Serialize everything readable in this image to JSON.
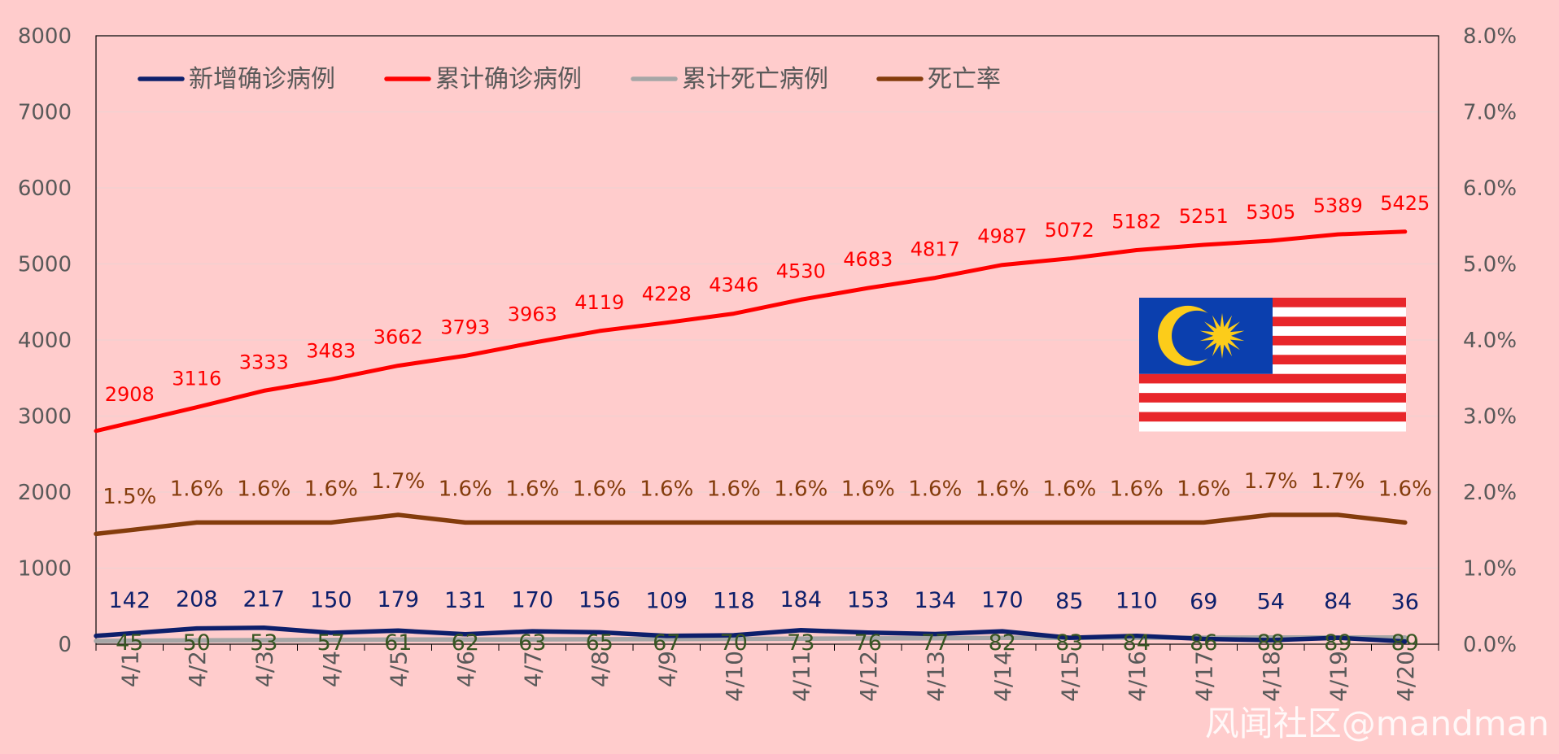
{
  "colors": {
    "background": "#ffcccc",
    "new_cases": "#0d1f6b",
    "total_cases": "#ff0000",
    "total_deaths": "#a6a6a6",
    "death_rate": "#843c0c",
    "death_labels": "#375623",
    "axis_text": "#595959",
    "gridline": "#f2d0d0"
  },
  "chart_data": {
    "type": "line",
    "categories": [
      "4/1",
      "4/2",
      "4/3",
      "4/4",
      "4/5",
      "4/6",
      "4/7",
      "4/8",
      "4/9",
      "4/10",
      "4/11",
      "4/12",
      "4/13",
      "4/14",
      "4/15",
      "4/16",
      "4/17",
      "4/18",
      "4/19",
      "4/20"
    ],
    "left_axis": {
      "ylim": [
        0,
        8000
      ],
      "ticks": [
        "0",
        "1000",
        "2000",
        "3000",
        "4000",
        "5000",
        "6000",
        "7000",
        "8000"
      ]
    },
    "right_axis": {
      "ylim": [
        0,
        8.0
      ],
      "ticks": [
        "0.0%",
        "1.0%",
        "2.0%",
        "3.0%",
        "4.0%",
        "5.0%",
        "6.0%",
        "7.0%",
        "8.0%"
      ]
    },
    "grid": true,
    "legend_position": "top-left",
    "series": [
      {
        "key": "new_cases",
        "name": "新增确诊病例",
        "axis": "left",
        "color": "#0d1f6b",
        "values": [
          142,
          208,
          217,
          150,
          179,
          131,
          170,
          156,
          109,
          118,
          184,
          153,
          134,
          170,
          85,
          110,
          69,
          54,
          84,
          36
        ],
        "labels": [
          "142",
          "208",
          "217",
          "150",
          "179",
          "131",
          "170",
          "156",
          "109",
          "118",
          "184",
          "153",
          "134",
          "170",
          "85",
          "110",
          "69",
          "54",
          "84",
          "36"
        ]
      },
      {
        "key": "total_cases",
        "name": "累计确诊病例",
        "axis": "left",
        "color": "#ff0000",
        "values": [
          2908,
          3116,
          3333,
          3483,
          3662,
          3793,
          3963,
          4119,
          4228,
          4346,
          4530,
          4683,
          4817,
          4987,
          5072,
          5182,
          5251,
          5305,
          5389,
          5425
        ],
        "labels": [
          "2908",
          "3116",
          "3333",
          "3483",
          "3662",
          "3793",
          "3963",
          "4119",
          "4228",
          "4346",
          "4530",
          "4683",
          "4817",
          "4987",
          "5072",
          "5182",
          "5251",
          "5305",
          "5389",
          "5425"
        ]
      },
      {
        "key": "total_deaths",
        "name": "累计死亡病例",
        "axis": "left",
        "color": "#a6a6a6",
        "values": [
          45,
          50,
          53,
          57,
          61,
          62,
          63,
          65,
          67,
          70,
          73,
          76,
          77,
          82,
          83,
          84,
          86,
          88,
          89,
          89
        ],
        "labels": [
          "45",
          "50",
          "53",
          "57",
          "61",
          "62",
          "63",
          "65",
          "67",
          "70",
          "73",
          "76",
          "77",
          "82",
          "83",
          "84",
          "86",
          "88",
          "89",
          "89"
        ]
      },
      {
        "key": "death_rate",
        "name": "死亡率",
        "axis": "right",
        "color": "#843c0c",
        "values": [
          1.5,
          1.6,
          1.6,
          1.6,
          1.7,
          1.6,
          1.6,
          1.6,
          1.6,
          1.6,
          1.6,
          1.6,
          1.6,
          1.6,
          1.6,
          1.6,
          1.6,
          1.7,
          1.7,
          1.6
        ],
        "labels": [
          "1.5%",
          "1.6%",
          "1.6%",
          "1.6%",
          "1.7%",
          "1.6%",
          "1.6%",
          "1.6%",
          "1.6%",
          "1.6%",
          "1.6%",
          "1.6%",
          "1.6%",
          "1.6%",
          "1.6%",
          "1.6%",
          "1.6%",
          "1.7%",
          "1.7%",
          "1.6%"
        ]
      }
    ]
  },
  "flag": {
    "name": "malaysia-flag"
  },
  "watermark": "风闻社区@mandman"
}
